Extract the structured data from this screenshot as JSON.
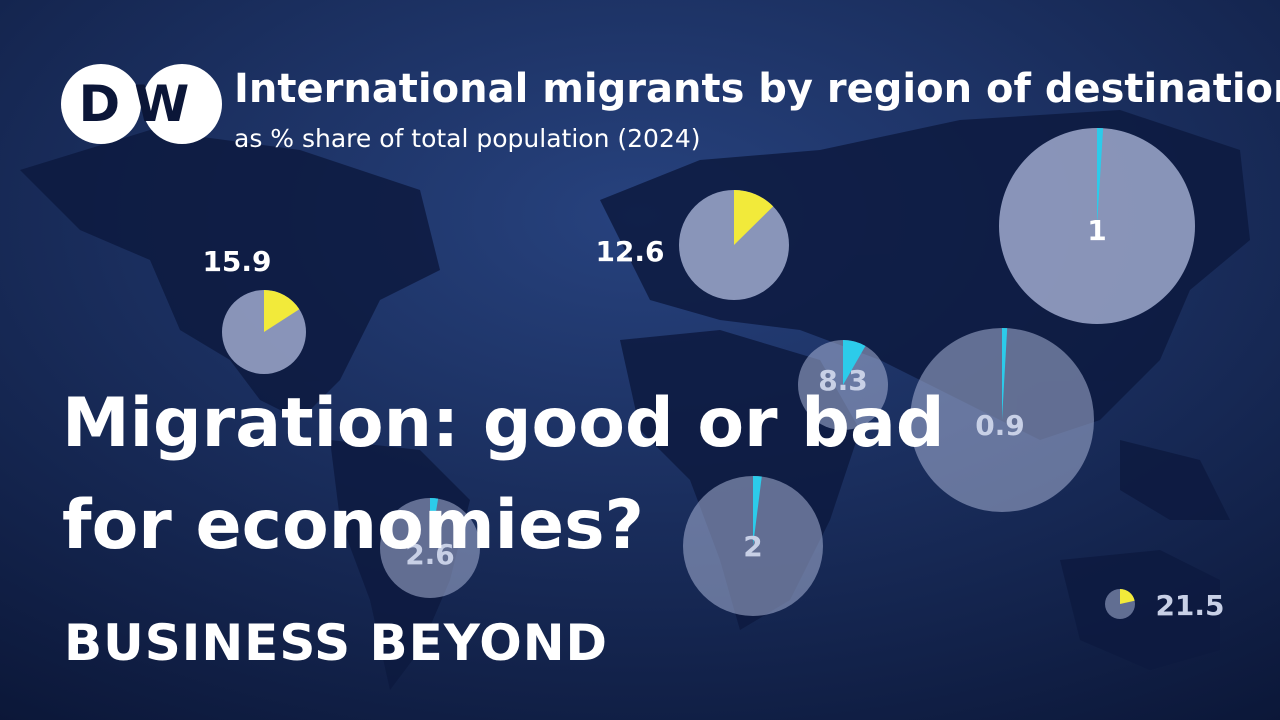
{
  "logo": "DW",
  "headline": [
    "Migration: good or bad",
    "for economies?"
  ],
  "show": "BUSINESS BEYOND",
  "chart_data": {
    "type": "pie",
    "title": "International migrants by region of destination",
    "subtitle": "as % share of total population (2024)",
    "values": [
      15.9,
      12.6,
      1,
      8.3,
      0.9,
      2,
      2.6,
      21.5
    ],
    "colors": [
      "#f2ea3a",
      "#f2ea3a",
      "#2ccbea",
      "#2ccbea",
      "#2ccbea",
      "#2ccbea",
      "#2ccbea",
      "#f2ea3a"
    ]
  }
}
